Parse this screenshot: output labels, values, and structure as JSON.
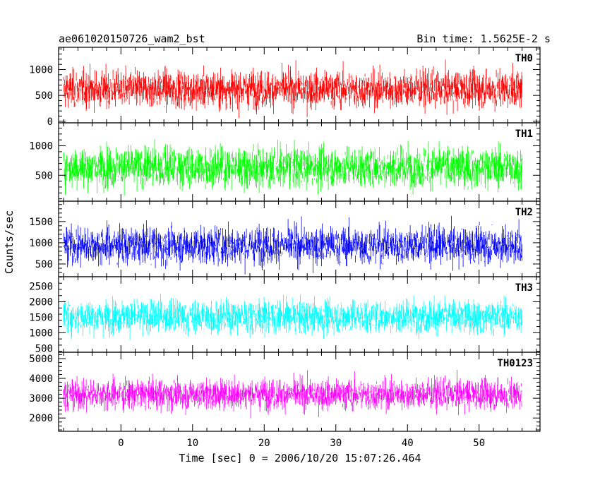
{
  "chart_data": {
    "type": "line",
    "title_left": "ae061020150726_wam2_bst",
    "title_right": "Bin time: 1.5625E-2 s",
    "xlabel": "Time [sec] 0 = 2006/10/20 15:07:26.464",
    "ylabel": "Counts/sec",
    "xlim": [
      -8.7,
      58.5
    ],
    "x_data_range": [
      -8.0,
      56.0
    ],
    "x_ticks": [
      0,
      10,
      20,
      30,
      40,
      50
    ],
    "grid": false,
    "panels": [
      {
        "label": "TH0",
        "color": "#ff0000",
        "ylim": [
          -30,
          1430
        ],
        "yticks": [
          0,
          500,
          1000
        ],
        "base": 620,
        "spread": 280,
        "min": 60,
        "max": 1430
      },
      {
        "label": "TH1",
        "color": "#00ff00",
        "ylim": [
          60,
          1390
        ],
        "yticks": [
          500,
          1000
        ],
        "base": 640,
        "spread": 270,
        "min": 80,
        "max": 1370
      },
      {
        "label": "TH2",
        "color": "#0000ff",
        "ylim": [
          200,
          1980
        ],
        "yticks": [
          500,
          1000,
          1500
        ],
        "base": 940,
        "spread": 340,
        "min": 220,
        "max": 1960
      },
      {
        "label": "TH3",
        "color": "#00ffff",
        "ylim": [
          370,
          2810
        ],
        "yticks": [
          500,
          1000,
          1500,
          2000,
          2500
        ],
        "base": 1520,
        "spread": 420,
        "min": 420,
        "max": 2790
      },
      {
        "label": "TH0123",
        "color": "#ff00ff",
        "ylim": [
          1330,
          5320
        ],
        "yticks": [
          2000,
          3000,
          4000,
          5000
        ],
        "base": 3200,
        "spread": 600,
        "min": 1380,
        "max": 5270
      }
    ]
  }
}
